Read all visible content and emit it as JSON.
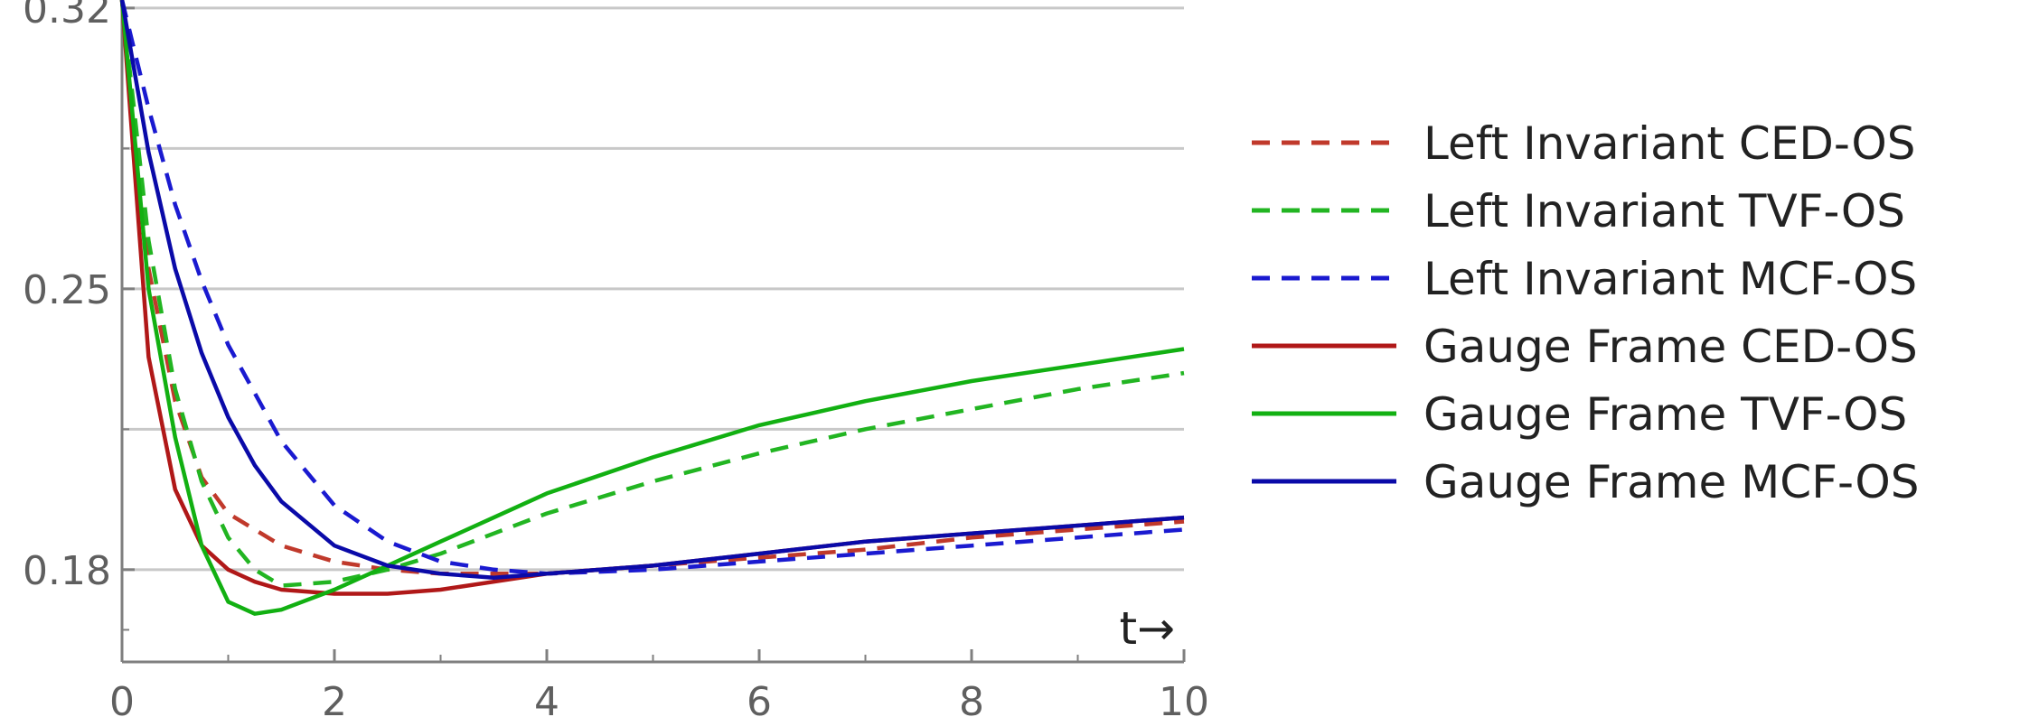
{
  "chart_data": {
    "type": "line",
    "title": "",
    "xlabel": "t→",
    "ylabel": "",
    "xlim": [
      0,
      10
    ],
    "ylim": [
      0.157,
      0.322
    ],
    "x_ticks": [
      0,
      2,
      4,
      6,
      8,
      10
    ],
    "x_tick_labels": [
      "0",
      "2",
      "4",
      "6",
      "8",
      "10"
    ],
    "y_ticks": [
      0.18,
      0.25,
      0.32
    ],
    "y_tick_labels": [
      "0.18",
      "0.25",
      "0.32"
    ],
    "gridlines_y": [
      0.18,
      0.215,
      0.25,
      0.285,
      0.32
    ],
    "grid": true,
    "legend_position": "right",
    "series": [
      {
        "name": "Left Invariant CED-OS",
        "color": "#c0392b",
        "dash": "dashed",
        "x": [
          0,
          0.25,
          0.5,
          0.75,
          1,
          1.5,
          2,
          2.5,
          3,
          3.5,
          4,
          5,
          6,
          7,
          8,
          9,
          10
        ],
        "y": [
          0.322,
          0.255,
          0.222,
          0.203,
          0.194,
          0.186,
          0.182,
          0.18,
          0.179,
          0.179,
          0.179,
          0.181,
          0.183,
          0.185,
          0.188,
          0.19,
          0.192
        ]
      },
      {
        "name": "Left Invariant TVF-OS",
        "color": "#22b522",
        "dash": "dashed",
        "x": [
          0,
          0.25,
          0.5,
          0.75,
          1,
          1.25,
          1.5,
          2,
          2.5,
          3,
          3.5,
          4,
          5,
          6,
          7,
          8,
          9,
          10
        ],
        "y": [
          0.322,
          0.262,
          0.225,
          0.202,
          0.188,
          0.18,
          0.176,
          0.177,
          0.18,
          0.184,
          0.189,
          0.194,
          0.202,
          0.209,
          0.215,
          0.22,
          0.225,
          0.229
        ]
      },
      {
        "name": "Left Invariant MCF-OS",
        "color": "#1a1ad0",
        "dash": "dashed",
        "x": [
          0,
          0.25,
          0.5,
          0.75,
          1,
          1.5,
          2,
          2.5,
          3,
          3.5,
          4,
          5,
          6,
          7,
          8,
          9,
          10
        ],
        "y": [
          0.322,
          0.295,
          0.271,
          0.252,
          0.236,
          0.212,
          0.196,
          0.187,
          0.182,
          0.18,
          0.179,
          0.18,
          0.182,
          0.184,
          0.186,
          0.188,
          0.19
        ]
      },
      {
        "name": "Gauge Frame CED-OS",
        "color": "#b01818",
        "dash": "solid",
        "x": [
          0,
          0.25,
          0.5,
          0.75,
          1,
          1.25,
          1.5,
          2,
          2.5,
          3,
          3.5,
          4,
          5,
          6,
          7,
          8,
          9,
          10
        ],
        "y": [
          0.322,
          0.233,
          0.2,
          0.186,
          0.18,
          0.177,
          0.175,
          0.174,
          0.174,
          0.175,
          0.177,
          0.179,
          0.181,
          0.184,
          0.187,
          0.189,
          0.191,
          0.193
        ]
      },
      {
        "name": "Gauge Frame TVF-OS",
        "color": "#12b012",
        "dash": "solid",
        "x": [
          0,
          0.25,
          0.5,
          0.75,
          1,
          1.25,
          1.5,
          2,
          2.5,
          3,
          3.5,
          4,
          5,
          6,
          7,
          8,
          9,
          10
        ],
        "y": [
          0.322,
          0.25,
          0.213,
          0.186,
          0.172,
          0.169,
          0.17,
          0.175,
          0.181,
          0.187,
          0.193,
          0.199,
          0.208,
          0.216,
          0.222,
          0.227,
          0.231,
          0.235
        ]
      },
      {
        "name": "Gauge Frame MCF-OS",
        "color": "#0a0aa8",
        "dash": "solid",
        "x": [
          0,
          0.25,
          0.5,
          0.75,
          1,
          1.25,
          1.5,
          2,
          2.5,
          3,
          3.5,
          4,
          5,
          6,
          7,
          8,
          9,
          10
        ],
        "y": [
          0.322,
          0.284,
          0.255,
          0.234,
          0.218,
          0.206,
          0.197,
          0.186,
          0.181,
          0.179,
          0.178,
          0.179,
          0.181,
          0.184,
          0.187,
          0.189,
          0.191,
          0.193
        ]
      }
    ]
  }
}
